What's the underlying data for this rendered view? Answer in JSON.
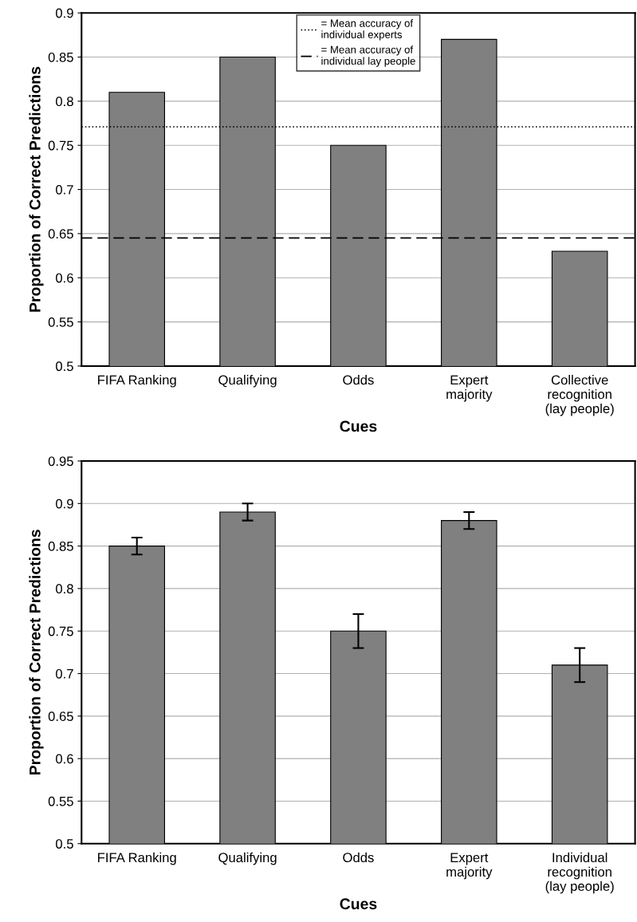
{
  "chart_data": [
    {
      "type": "bar",
      "xlabel": "Cues",
      "ylabel": "Proportion of Correct Predictions",
      "categories": [
        "FIFA Ranking",
        "Qualifying",
        "Odds",
        "Expert\nmajority",
        "Collective\nrecognition\n(lay people)"
      ],
      "values": [
        0.81,
        0.85,
        0.75,
        0.87,
        0.63
      ],
      "color": "#808080",
      "ylim": [
        0.5,
        0.9
      ],
      "yticks": [
        0.5,
        0.55,
        0.6,
        0.65,
        0.7,
        0.75,
        0.8,
        0.85,
        0.9
      ],
      "grid": "y",
      "ref_lines": [
        {
          "axis": "y",
          "value": 0.771,
          "label": "= Mean accuracy of\nindividual experts",
          "line_style": "dotted",
          "color": "#000000"
        },
        {
          "axis": "y",
          "value": 0.645,
          "label": "= Mean accuracy of\nindividual lay people",
          "line_style": "dashed",
          "color": "#000000"
        }
      ],
      "legend": "top"
    },
    {
      "type": "bar",
      "xlabel": "Cues",
      "ylabel": "Proportion of Correct Predictions",
      "categories": [
        "FIFA Ranking",
        "Qualifying",
        "Odds",
        "Expert\nmajority",
        "Individual\nrecognition\n(lay people)"
      ],
      "values": [
        0.85,
        0.89,
        0.75,
        0.88,
        0.71
      ],
      "errors": [
        0.01,
        0.01,
        0.02,
        0.01,
        0.02
      ],
      "color": "#808080",
      "ylim": [
        0.5,
        0.95
      ],
      "yticks": [
        0.5,
        0.55,
        0.6,
        0.65,
        0.7,
        0.75,
        0.8,
        0.85,
        0.9,
        0.95
      ],
      "grid": "y"
    }
  ]
}
